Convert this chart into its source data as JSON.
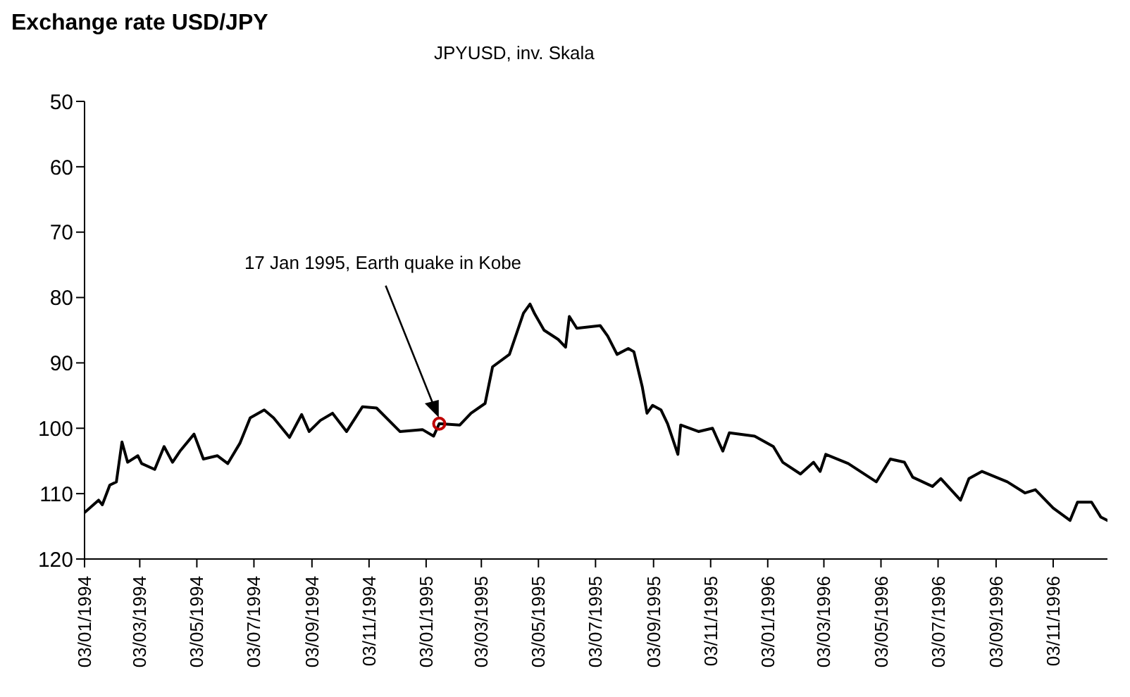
{
  "chart_data": {
    "type": "line",
    "title": "Exchange rate USD/JPY",
    "subtitle": "JPYUSD, inv. Skala",
    "annotations": [
      "17 Jan 1995, Earth quake in Kobe"
    ],
    "xlim": [
      "1994-01-03",
      "1996-12-31"
    ],
    "xticks": [
      {
        "value": "1994-01-03",
        "label": "03/01/1994"
      },
      {
        "value": "1994-03-03",
        "label": "03/03/1994"
      },
      {
        "value": "1994-05-03",
        "label": "03/05/1994"
      },
      {
        "value": "1994-07-03",
        "label": "03/07/1994"
      },
      {
        "value": "1994-09-03",
        "label": "03/09/1994"
      },
      {
        "value": "1994-11-03",
        "label": "03/11/1994"
      },
      {
        "value": "1995-01-03",
        "label": "03/01/1995"
      },
      {
        "value": "1995-03-03",
        "label": "03/03/1995"
      },
      {
        "value": "1995-05-03",
        "label": "03/05/1995"
      },
      {
        "value": "1995-07-03",
        "label": "03/07/1995"
      },
      {
        "value": "1995-09-03",
        "label": "03/09/1995"
      },
      {
        "value": "1995-11-03",
        "label": "03/11/1995"
      },
      {
        "value": "1996-01-03",
        "label": "03/01/1996"
      },
      {
        "value": "1996-03-03",
        "label": "03/03/1996"
      },
      {
        "value": "1996-05-03",
        "label": "03/05/1996"
      },
      {
        "value": "1996-07-03",
        "label": "03/07/1996"
      },
      {
        "value": "1996-09-03",
        "label": "03/09/1996"
      },
      {
        "value": "1996-11-03",
        "label": "03/11/1996"
      }
    ],
    "ylim": [
      120,
      50
    ],
    "yticks": [
      50,
      60,
      70,
      80,
      90,
      100,
      110,
      120
    ],
    "grid": false,
    "legend": false,
    "marker": "none",
    "line_style": "solid",
    "series": [
      {
        "color": "#000000",
        "x": [
          "1994-01-03",
          "1994-01-18",
          "1994-01-22",
          "1994-01-30",
          "1994-02-06",
          "1994-02-12",
          "1994-02-18",
          "1994-03-01",
          "1994-03-05",
          "1994-03-19",
          "1994-03-29",
          "1994-04-07",
          "1994-04-15",
          "1994-04-30",
          "1994-05-10",
          "1994-05-25",
          "1994-06-05",
          "1994-06-18",
          "1994-06-29",
          "1994-07-14",
          "1994-07-24",
          "1994-08-10",
          "1994-08-23",
          "1994-08-31",
          "1994-09-12",
          "1994-09-25",
          "1994-10-10",
          "1994-10-27",
          "1994-11-11",
          "1994-12-06",
          "1994-12-30",
          "1995-01-11",
          "1995-01-17",
          "1995-02-08",
          "1995-02-20",
          "1995-03-07",
          "1995-03-15",
          "1995-04-02",
          "1995-04-17",
          "1995-04-24",
          "1995-04-29",
          "1995-05-09",
          "1995-05-24",
          "1995-06-01",
          "1995-06-05",
          "1995-06-13",
          "1995-07-08",
          "1995-07-16",
          "1995-07-26",
          "1995-08-07",
          "1995-08-13",
          "1995-08-22",
          "1995-08-27",
          "1995-09-02",
          "1995-09-11",
          "1995-09-18",
          "1995-09-29",
          "1995-10-02",
          "1995-10-21",
          "1995-11-05",
          "1995-11-16",
          "1995-11-23",
          "1995-12-20",
          "1996-01-09",
          "1996-01-19",
          "1996-02-07",
          "1996-02-21",
          "1996-02-28",
          "1996-03-05",
          "1996-03-29",
          "1996-04-28",
          "1996-05-13",
          "1996-05-28",
          "1996-06-06",
          "1996-06-27",
          "1996-07-06",
          "1996-07-27",
          "1996-08-05",
          "1996-08-19",
          "1996-09-15",
          "1996-10-04",
          "1996-10-15",
          "1996-11-03",
          "1996-11-21",
          "1996-11-29",
          "1996-12-14",
          "1996-12-24",
          "1996-12-31"
        ],
        "values": [
          112.9,
          111,
          111.7,
          108.7,
          108.2,
          102.1,
          105.2,
          104.2,
          105.4,
          106.3,
          102.8,
          105.2,
          103.5,
          100.9,
          104.7,
          104.2,
          105.4,
          102.3,
          98.4,
          97.2,
          98.4,
          101.4,
          97.9,
          100.5,
          98.8,
          97.7,
          100.5,
          96.7,
          96.9,
          100.5,
          100.2,
          101.2,
          99.3,
          99.5,
          97.7,
          96.2,
          90.6,
          88.7,
          82.4,
          81,
          82.5,
          85,
          86.4,
          87.6,
          82.9,
          84.7,
          84.3,
          85.9,
          88.7,
          87.8,
          88.3,
          93.7,
          97.7,
          96.5,
          97.2,
          99.3,
          104,
          99.5,
          100.5,
          100,
          103.5,
          100.7,
          101.2,
          102.8,
          105.2,
          107,
          105.2,
          106.6,
          104,
          105.4,
          108.2,
          104.7,
          105.2,
          107.5,
          108.9,
          107.7,
          111,
          107.7,
          106.6,
          108.2,
          109.9,
          109.4,
          112.2,
          114.1,
          111.3,
          111.3,
          113.6,
          114.1
        ]
      },
      {
        "type": "scatter",
        "color": "#c00000",
        "marker": "circle",
        "x": [
          "1995-01-17"
        ],
        "values": [
          99.3
        ]
      }
    ]
  }
}
